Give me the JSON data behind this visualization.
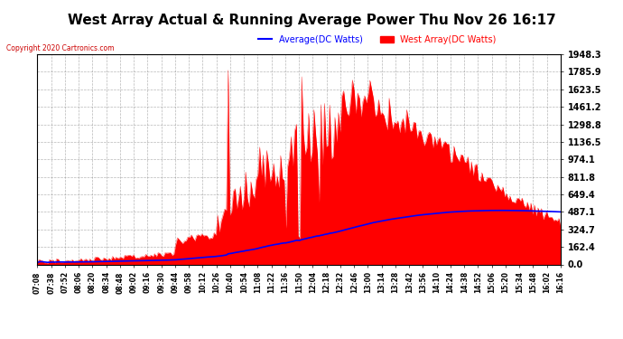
{
  "title": "West Array Actual & Running Average Power Thu Nov 26 16:17",
  "copyright": "Copyright 2020 Cartronics.com",
  "legend_avg": "Average(DC Watts)",
  "legend_west": "West Array(DC Watts)",
  "ymax": 1948.3,
  "yticks": [
    0.0,
    162.4,
    324.7,
    487.1,
    649.4,
    811.8,
    974.1,
    1136.5,
    1298.8,
    1461.2,
    1623.5,
    1785.9,
    1948.3
  ],
  "bg_color": "#ffffff",
  "plot_bg_color": "#ffffff",
  "grid_color": "#aaaaaa",
  "bar_color": "#ff0000",
  "avg_line_color": "#0000ff",
  "title_color": "#000000",
  "title_fontsize": 11,
  "copyright_color": "#cc0000",
  "xtick_labels": [
    "07:08",
    "07:38",
    "07:52",
    "08:06",
    "08:20",
    "08:34",
    "08:48",
    "09:02",
    "09:16",
    "09:30",
    "09:44",
    "09:58",
    "10:12",
    "10:26",
    "10:40",
    "10:54",
    "11:08",
    "11:22",
    "11:36",
    "11:50",
    "12:04",
    "12:18",
    "12:32",
    "12:46",
    "13:00",
    "13:14",
    "13:28",
    "13:42",
    "13:56",
    "14:10",
    "14:24",
    "14:38",
    "14:52",
    "15:06",
    "15:20",
    "15:34",
    "15:48",
    "16:02",
    "16:16"
  ]
}
